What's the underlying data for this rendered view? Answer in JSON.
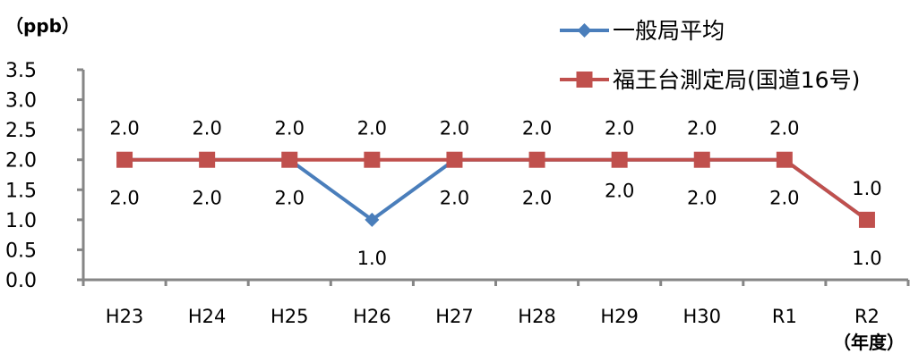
{
  "chart_data": {
    "type": "line",
    "y_unit_label": "（ppb）",
    "x_unit_label": "（年度）",
    "categories": [
      "H23",
      "H24",
      "H25",
      "H26",
      "H27",
      "H28",
      "H29",
      "H30",
      "R1",
      "R2"
    ],
    "ylim": [
      0.0,
      3.5
    ],
    "yticks": [
      "0.0",
      "0.5",
      "1.0",
      "1.5",
      "2.0",
      "2.5",
      "3.0",
      "3.5"
    ],
    "grid": false,
    "legend_position": "top-right",
    "series": [
      {
        "name": "一般局平均",
        "color": "#4a7ebb",
        "marker": "diamond",
        "values": [
          2.0,
          2.0,
          2.0,
          1.0,
          2.0,
          2.0,
          2.0,
          2.0,
          2.0,
          1.0
        ],
        "labels": [
          "2.0",
          "2.0",
          "2.0",
          "1.0",
          "2.0",
          "2.0",
          "2.0",
          "2.0",
          "2.0",
          "1.0"
        ]
      },
      {
        "name": "福王台測定局(国道16号)",
        "color": "#c0504d",
        "marker": "square",
        "values": [
          2.0,
          2.0,
          2.0,
          2.0,
          2.0,
          2.0,
          2.0,
          2.0,
          2.0,
          1.0
        ],
        "labels": [
          "2.0",
          "2.0",
          "2.0",
          "2.0",
          "2.0",
          "2.0",
          "2.0",
          "2.0",
          "2.0",
          "1.0"
        ]
      }
    ]
  }
}
